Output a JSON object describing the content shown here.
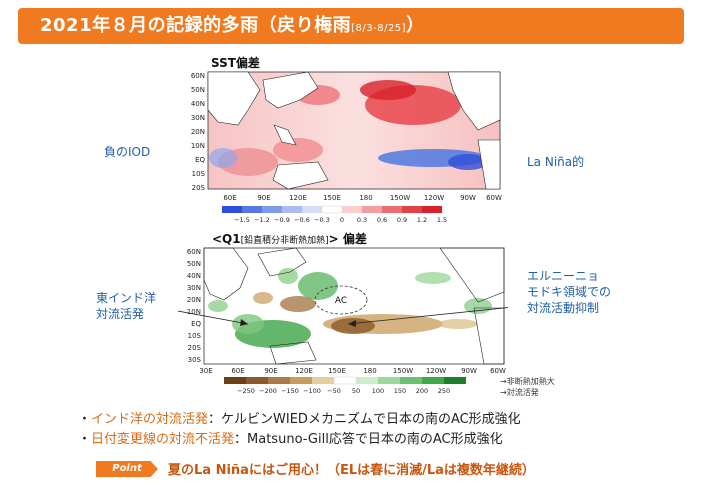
{
  "banner": {
    "title": "2021年８月の記録的多雨（戻り梅雨",
    "period": "[8/3-8/25]",
    "close": "）"
  },
  "sst_panel": {
    "title": "SST偏差",
    "lat_labels": [
      "60N",
      "50N",
      "40N",
      "30N",
      "20N",
      "10N",
      "EQ",
      "10S",
      "20S"
    ],
    "lon_labels": [
      "60E",
      "90E",
      "120E",
      "150E",
      "180",
      "150W",
      "120W",
      "90W",
      "60W"
    ],
    "colorbar_ticks": [
      "−1.5",
      "−1.2",
      "−0.9",
      "−0.6",
      "−0.3",
      "0",
      "0.3",
      "0.6",
      "0.9",
      "1.2",
      "1.5"
    ],
    "colors": {
      "neg": "#2e4fd9",
      "pos": "#d8222a"
    }
  },
  "q1_panel": {
    "title_prefix": "<Q1",
    "title_small": "[鉛直積分非断熱加熱]",
    "title_suffix": "> 偏差",
    "lat_labels": [
      "60N",
      "50N",
      "40N",
      "30N",
      "20N",
      "10N",
      "EQ",
      "10S",
      "20S",
      "30S"
    ],
    "lon_labels": [
      "30E",
      "60E",
      "90E",
      "120E",
      "150E",
      "180",
      "150W",
      "120W",
      "90W",
      "60W"
    ],
    "colorbar_ticks": [
      "−250",
      "−200",
      "−150",
      "−100",
      "−50",
      "50",
      "100",
      "150",
      "200",
      "250"
    ],
    "ac_label": "AC",
    "colors": {
      "heating": "#2f9e3a",
      "cooling": "#8b5a2b"
    }
  },
  "annotations": {
    "neg_iod": "負のIOD",
    "la_nina": "La Niña的",
    "east_indian_1": "東インド洋",
    "east_indian_2": "対流活発",
    "elnino_1": "エルニーニョ",
    "elnino_2": "モドキ領域での",
    "elnino_3": "対流活動抑制"
  },
  "legend_note": {
    "line1": "→非断熱加熱大",
    "line2": "→対流活発"
  },
  "bullets": [
    {
      "mark": "・",
      "highlight": "インド洋の対流活発",
      "text": "：ケルビンWIEDメカニズムで日本の南のAC形成強化"
    },
    {
      "mark": "・",
      "highlight": "日付変更線の対流不活発",
      "text": "：Matsuno-Gill応答で日本の南のAC形成強化"
    }
  ],
  "point": {
    "badge": "Point",
    "text": "夏のLa Niñaにはご用心！（ELは春に消滅/Laは複数年継続）"
  }
}
